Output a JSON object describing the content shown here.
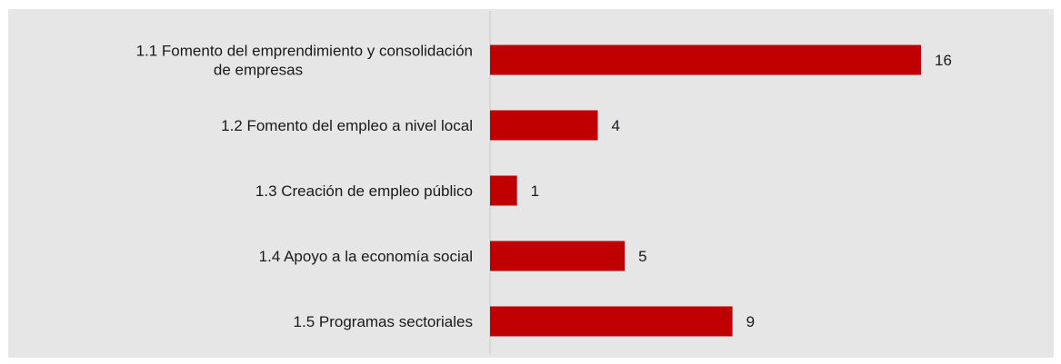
{
  "chart_data": {
    "type": "bar",
    "orientation": "horizontal",
    "categories": [
      [
        "1.1  Fomento del emprendimiento y consolidación",
        "de empresas"
      ],
      [
        "1.2 Fomento del empleo a nivel local"
      ],
      [
        "1.3 Creación de empleo público"
      ],
      [
        "1.4 Apoyo a la economía social"
      ],
      [
        "1.5 Programas sectoriales"
      ]
    ],
    "values": [
      16,
      4,
      1,
      5,
      9
    ],
    "value_labels": [
      "16",
      "4",
      "1",
      "5",
      "9"
    ],
    "bar_color": "#c00000",
    "background_color": "#e6e6e6",
    "axis_color": "#c8c8c8",
    "xlim": [
      0,
      16
    ],
    "grid": false,
    "legend": "none"
  }
}
